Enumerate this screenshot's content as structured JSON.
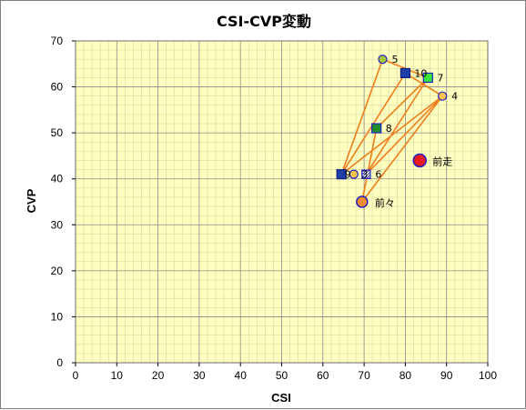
{
  "chart_data": {
    "type": "scatter",
    "title": "CSI-CVP変動",
    "xlabel": "CSI",
    "ylabel": "CVP",
    "xlim": [
      0,
      100
    ],
    "ylim": [
      0,
      70
    ],
    "x_ticks": [
      0,
      10,
      20,
      30,
      40,
      50,
      60,
      70,
      80,
      90,
      100
    ],
    "y_ticks": [
      0,
      10,
      20,
      30,
      40,
      50,
      60,
      70
    ],
    "grid": true,
    "line_color": "#f07d1c",
    "plot_background": "#ffffc0",
    "points": [
      {
        "label": "前走",
        "x": 83.5,
        "y": 44,
        "marker": "circle-large",
        "fill": "#e41a1c",
        "stroke": "#2020c0"
      },
      {
        "label": "前々",
        "x": 69.5,
        "y": 35,
        "marker": "circle-medium",
        "fill": "#f28c28",
        "stroke": "#2020c0"
      },
      {
        "label": "3",
        "x": 70.5,
        "y": 41,
        "marker": "square-hatched",
        "fill": "#ffffff",
        "stroke": "#2020c0"
      },
      {
        "label": "4",
        "x": 89,
        "y": 58,
        "marker": "circle-small",
        "fill": "#f7c44d",
        "stroke": "#2020c0"
      },
      {
        "label": "5",
        "x": 74.5,
        "y": 66,
        "marker": "circle-small",
        "fill": "#a6c938",
        "stroke": "#2020c0"
      },
      {
        "label": "6",
        "x": 70.5,
        "y": 41,
        "marker": "square-hatched",
        "fill": "#ffffff",
        "stroke": "#2020c0"
      },
      {
        "label": "7",
        "x": 85.5,
        "y": 62,
        "marker": "square",
        "fill": "#39e639",
        "stroke": "#2020c0"
      },
      {
        "label": "8",
        "x": 73,
        "y": 51,
        "marker": "square",
        "fill": "#1e8c2a",
        "stroke": "#2020c0"
      },
      {
        "label": "9",
        "x": 67.5,
        "y": 41,
        "marker": "circle-small",
        "fill": "#f7c44d",
        "stroke": "#2020c0"
      },
      {
        "label": "10",
        "x": 80,
        "y": 63,
        "marker": "square",
        "fill": "#1f3fa8",
        "stroke": "#102080"
      },
      {
        "label": "",
        "x": 64.5,
        "y": 41,
        "marker": "square",
        "fill": "#1f3fa8",
        "stroke": "#102080"
      }
    ],
    "connection_path": [
      [
        64.5,
        41
      ],
      [
        80,
        63
      ],
      [
        89,
        58
      ],
      [
        64.5,
        41
      ],
      [
        74.5,
        66
      ],
      [
        85.5,
        62
      ],
      [
        70.5,
        41
      ],
      [
        89,
        58
      ],
      [
        69.5,
        35
      ],
      [
        73,
        51
      ],
      [
        85.5,
        62
      ]
    ]
  }
}
